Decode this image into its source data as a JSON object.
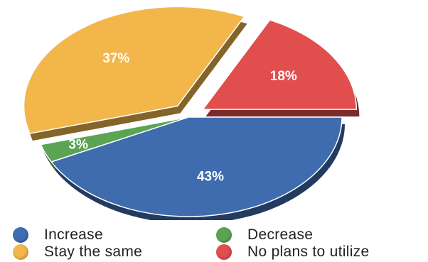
{
  "chart_data": {
    "type": "pie",
    "title": "",
    "slices": [
      {
        "name": "Increase",
        "value": 43,
        "label": "43%",
        "color": "#3f6cae"
      },
      {
        "name": "Decrease",
        "value": 3,
        "label": "3%",
        "color": "#5aa453"
      },
      {
        "name": "Stay the same",
        "value": 37,
        "label": "37%",
        "color": "#f2b64b"
      },
      {
        "name": "No plans to utilize",
        "value": 18,
        "label": "18%",
        "color": "#e04e4e"
      }
    ],
    "exploded": [
      "Stay the same",
      "No plans to utilize"
    ],
    "legend_position": "bottom"
  },
  "legend": {
    "increase": "Increase",
    "decrease": "Decrease",
    "stay_same": "Stay the same",
    "no_plans": "No plans to utilize"
  }
}
